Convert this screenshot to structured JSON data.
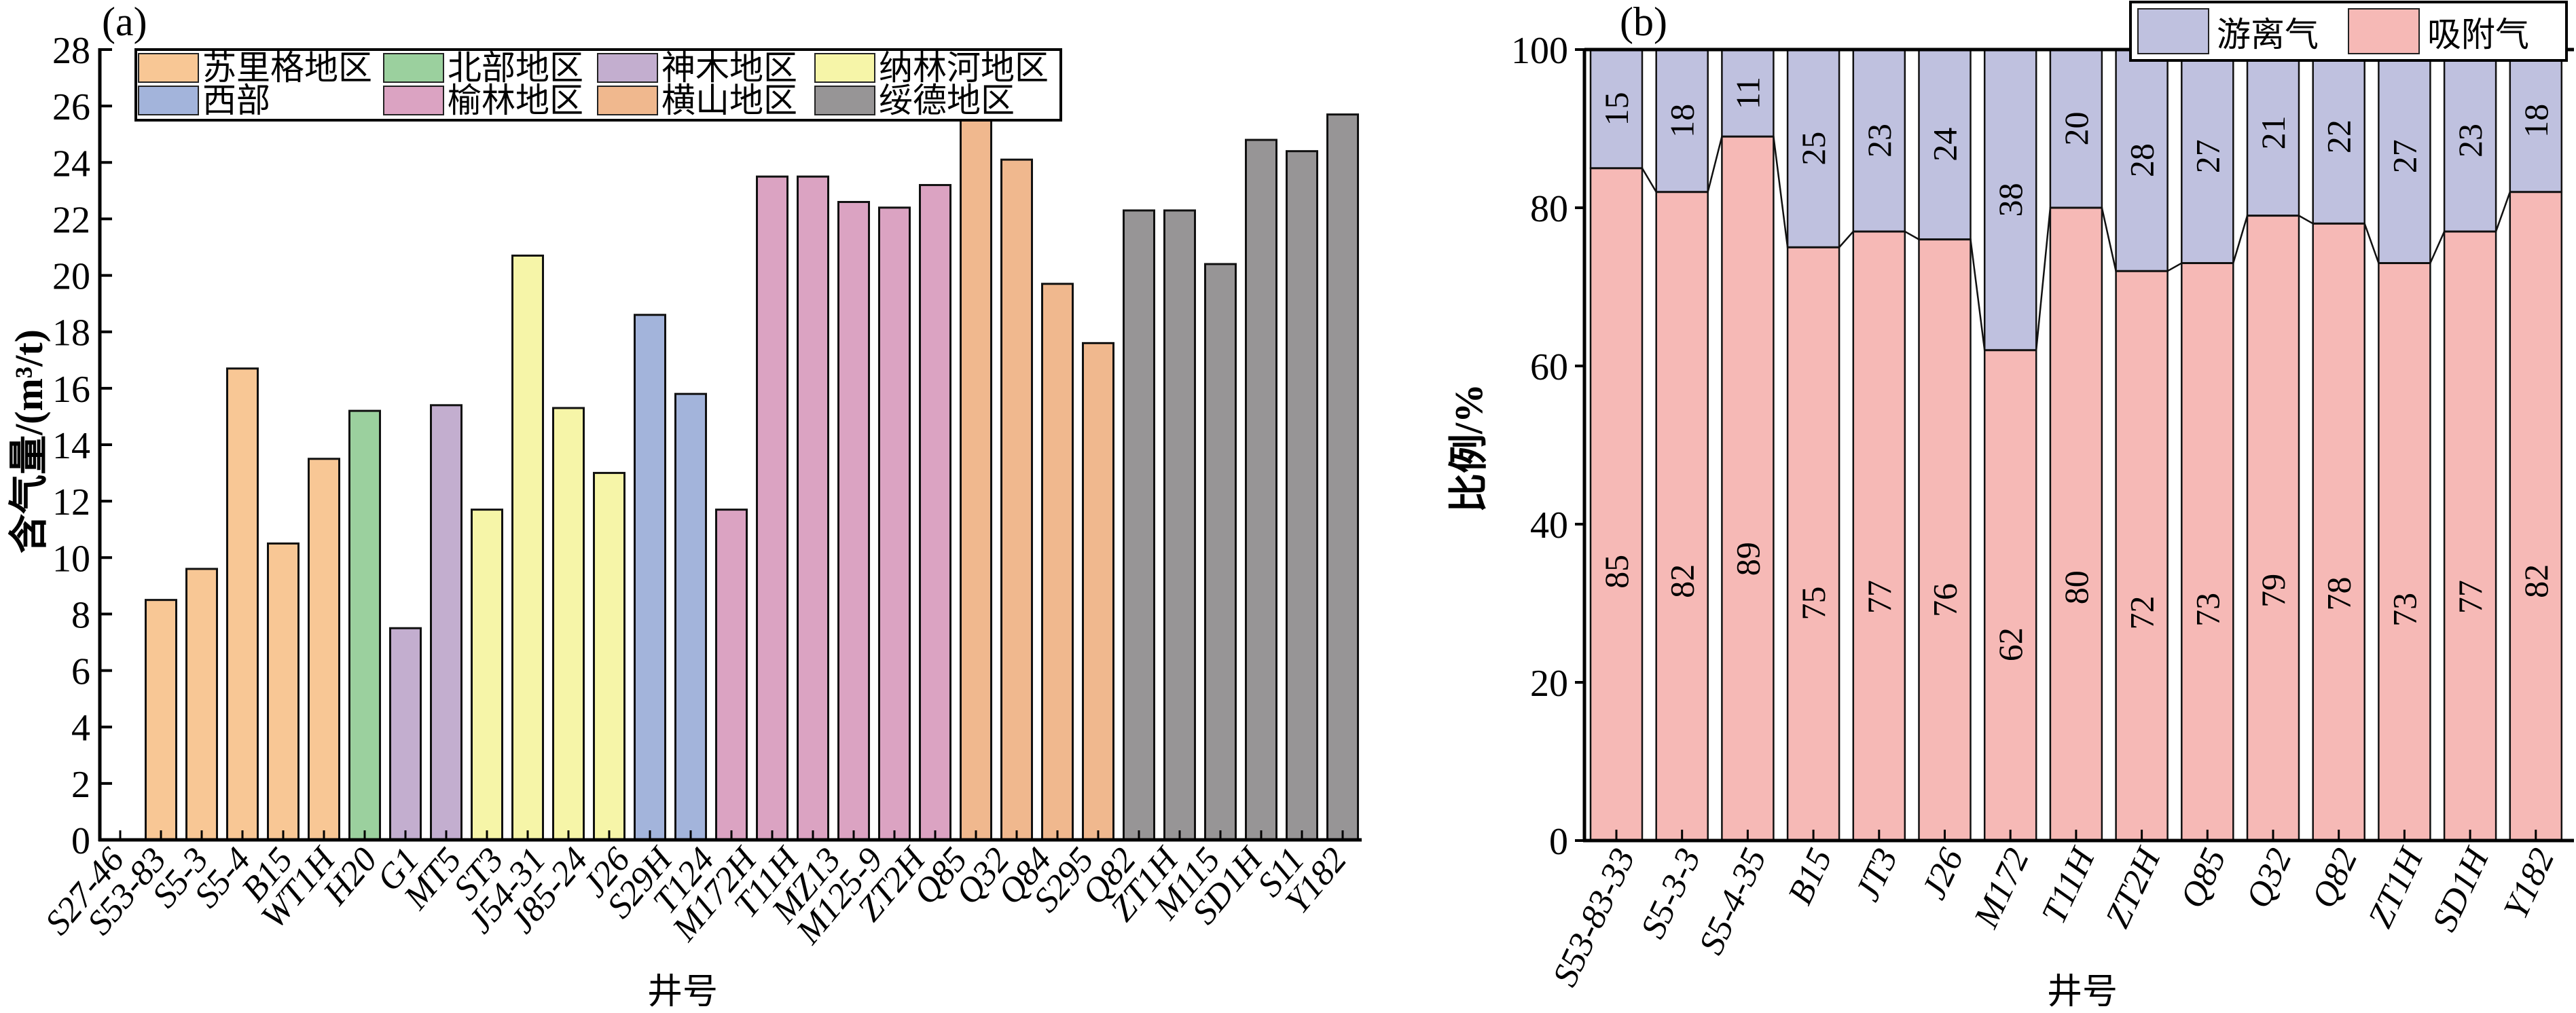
{
  "figure": {
    "panels": [
      "(a)",
      "(b)"
    ]
  },
  "chart_data": [
    {
      "id": "a",
      "type": "bar",
      "panel_tag": "(a)",
      "title": "",
      "xlabel": "井号",
      "ylabel": "含气量/(m³/t)",
      "ylim": [
        0,
        28
      ],
      "yticks": [
        0,
        2,
        4,
        6,
        8,
        10,
        12,
        14,
        16,
        18,
        20,
        22,
        24,
        26,
        28
      ],
      "grid": false,
      "legend_position": "top-left",
      "legend": [
        {
          "name": "苏里格地区",
          "color": "#F8C795"
        },
        {
          "name": "北部地区",
          "color": "#9BD09E"
        },
        {
          "name": "神木地区",
          "color": "#C3AECF"
        },
        {
          "name": "纳林河地区",
          "color": "#F6F5A8"
        },
        {
          "name": "西部",
          "color": "#A3B4DB"
        },
        {
          "name": "榆林地区",
          "color": "#DBA3C2"
        },
        {
          "name": "横山地区",
          "color": "#F0B88E"
        },
        {
          "name": "绥德地区",
          "color": "#979596"
        }
      ],
      "tick_labels": [
        "S27-46",
        "S53-83",
        "S5-3",
        "S5-4",
        "B15",
        "WT1H",
        "H20",
        "G1",
        "MT5",
        "ST3",
        "J54-31",
        "J85-24",
        "J26",
        "S29H",
        "T124",
        "M172H",
        "T11H",
        "MZ13",
        "M125-9",
        "ZT2H",
        "Q85",
        "Q32",
        "Q84",
        "S295",
        "Q82",
        "ZT1H",
        "M115",
        "SD1H",
        "S11",
        "Y182"
      ],
      "slots": 31,
      "bars": [
        {
          "region": "苏里格地区",
          "value": 8.5
        },
        {
          "region": "苏里格地区",
          "value": 9.6
        },
        {
          "region": "苏里格地区",
          "value": 16.7
        },
        {
          "region": "苏里格地区",
          "value": 10.5
        },
        {
          "region": "苏里格地区",
          "value": 13.5
        },
        {
          "region": "北部地区",
          "value": 15.2
        },
        {
          "region": "神木地区",
          "value": 7.5
        },
        {
          "region": "神木地区",
          "value": 15.4
        },
        {
          "region": "纳林河地区",
          "value": 11.7
        },
        {
          "region": "纳林河地区",
          "value": 20.7
        },
        {
          "region": "纳林河地区",
          "value": 15.3
        },
        {
          "region": "纳林河地区",
          "value": 13.0
        },
        {
          "region": "西部",
          "value": 18.6
        },
        {
          "region": "西部",
          "value": 15.8
        },
        {
          "region": "榆林地区",
          "value": 11.7
        },
        {
          "region": "榆林地区",
          "value": 23.5
        },
        {
          "region": "榆林地区",
          "value": 23.5
        },
        {
          "region": "榆林地区",
          "value": 22.6
        },
        {
          "region": "榆林地区",
          "value": 22.4
        },
        {
          "region": "榆林地区",
          "value": 23.2
        },
        {
          "region": "横山地区",
          "value": 26.0
        },
        {
          "region": "横山地区",
          "value": 24.1
        },
        {
          "region": "横山地区",
          "value": 19.7
        },
        {
          "region": "横山地区",
          "value": 17.6
        },
        {
          "region": "绥德地区",
          "value": 22.3
        },
        {
          "region": "绥德地区",
          "value": 22.3
        },
        {
          "region": "绥德地区",
          "value": 20.4
        },
        {
          "region": "绥德地区",
          "value": 24.8
        },
        {
          "region": "绥德地区",
          "value": 24.4
        },
        {
          "region": "绥德地区",
          "value": 25.7
        }
      ]
    },
    {
      "id": "b",
      "type": "bar",
      "stacked": true,
      "panel_tag": "(b)",
      "title": "",
      "xlabel": "井号",
      "ylabel": "比例/%",
      "ylim": [
        0,
        100
      ],
      "yticks": [
        0,
        20,
        40,
        60,
        80,
        100
      ],
      "grid": false,
      "legend_position": "top-right",
      "categories": [
        "S53-83-33",
        "S5-3-3",
        "S5-4-35",
        "B15",
        "JT3",
        "J26",
        "M172",
        "T11H",
        "ZT2H",
        "Q85",
        "Q32",
        "Q82",
        "ZT1H",
        "SD1H",
        "Y182"
      ],
      "series": [
        {
          "name": "吸附气",
          "color": "#F6B9B6",
          "values": [
            85,
            82,
            89,
            75,
            77,
            76,
            62,
            80,
            72,
            73,
            79,
            78,
            73,
            77,
            82
          ]
        },
        {
          "name": "游离气",
          "color": "#BFC1DF",
          "values": [
            15,
            18,
            11,
            25,
            23,
            24,
            38,
            20,
            28,
            27,
            21,
            22,
            27,
            23,
            18
          ]
        }
      ],
      "legend": [
        {
          "name": "游离气",
          "color": "#BFC1DF"
        },
        {
          "name": "吸附气",
          "color": "#F6B9B6"
        }
      ]
    }
  ]
}
